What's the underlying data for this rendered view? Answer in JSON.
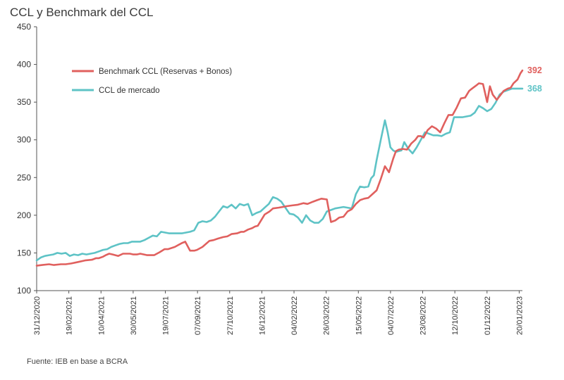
{
  "chart_data": {
    "type": "line",
    "title": "CCL y Benchmark del CCL",
    "source": "Fuente: IEB en base a BCRA",
    "ylim": [
      100,
      450
    ],
    "yticks": [
      100,
      150,
      200,
      250,
      300,
      350,
      400,
      450
    ],
    "x_tick_labels": [
      "31/12/2020",
      "19/02/2021",
      "10/04/2021",
      "30/05/2021",
      "19/07/2021",
      "07/09/2021",
      "27/10/2021",
      "16/12/2021",
      "04/02/2022",
      "26/03/2022",
      "15/05/2022",
      "04/07/2022",
      "23/08/2022",
      "12/10/2022",
      "01/12/2022",
      "20/01/2023"
    ],
    "legend_position": "top-left",
    "grid": false,
    "series": [
      {
        "name": "Benchmark CCL (Reservas + Bonos)",
        "color": "#e0605e",
        "end_label": "392",
        "x": [
          0,
          8,
          18,
          25,
          35,
          42,
          50,
          60,
          70,
          80,
          86,
          90,
          96,
          100,
          105,
          110,
          118,
          125,
          130,
          135,
          140,
          145,
          150,
          160,
          170,
          178,
          185,
          190,
          200,
          210,
          215,
          222,
          228,
          232,
          240,
          250,
          256,
          262,
          270,
          276,
          282,
          290,
          296,
          300,
          306,
          312,
          316,
          320,
          330,
          337,
          342,
          350,
          356,
          362,
          370,
          378,
          386,
          392,
          400,
          406,
          412,
          420,
          426,
          432,
          438,
          444,
          450,
          456,
          462,
          468,
          474,
          480,
          486,
          492,
          498,
          504,
          510,
          516,
          520,
          524,
          530,
          536,
          542,
          548,
          552,
          556,
          560,
          566,
          572,
          578,
          584,
          590,
          596,
          602,
          608,
          614,
          620,
          626,
          630,
          636,
          640,
          646,
          652,
          656,
          660,
          666,
          670,
          676,
          682,
          686,
          690,
          696,
          700,
          703
        ],
        "y": [
          133,
          134,
          135,
          134,
          135,
          135,
          136,
          138,
          140,
          141,
          143,
          143,
          145,
          147,
          149,
          148,
          146,
          149,
          149,
          149,
          148,
          148,
          149,
          147,
          147,
          151,
          155,
          155,
          158,
          163,
          165,
          153,
          153,
          154,
          158,
          166,
          167,
          169,
          171,
          172,
          175,
          176,
          178,
          178,
          181,
          183,
          185,
          186,
          201,
          205,
          209,
          210,
          211,
          212,
          213,
          214,
          216,
          215,
          218,
          220,
          222,
          221,
          191,
          193,
          197,
          198,
          205,
          208,
          215,
          220,
          222,
          223,
          228,
          233,
          248,
          265,
          257,
          275,
          285,
          287,
          288,
          287,
          295,
          300,
          305,
          305,
          303,
          313,
          318,
          315,
          310,
          322,
          333,
          333,
          343,
          355,
          356,
          365,
          368,
          372,
          375,
          374,
          350,
          371,
          360,
          353,
          358,
          365,
          368,
          369,
          375,
          380,
          388,
          392
        ]
      },
      {
        "name": "CCL de mercado",
        "color": "#5ec3c6",
        "end_label": "368",
        "x": [
          0,
          6,
          12,
          18,
          24,
          30,
          36,
          42,
          48,
          54,
          60,
          66,
          72,
          78,
          84,
          90,
          96,
          102,
          108,
          114,
          120,
          126,
          132,
          138,
          144,
          150,
          156,
          162,
          168,
          174,
          180,
          186,
          192,
          198,
          204,
          210,
          216,
          222,
          228,
          234,
          240,
          246,
          252,
          258,
          264,
          270,
          276,
          282,
          288,
          294,
          300,
          306,
          312,
          318,
          324,
          330,
          336,
          342,
          348,
          354,
          360,
          366,
          372,
          378,
          384,
          390,
          396,
          402,
          408,
          414,
          420,
          426,
          432,
          438,
          444,
          450,
          456,
          462,
          468,
          474,
          480,
          484,
          488,
          492,
          498,
          504,
          508,
          512,
          516,
          520,
          524,
          528,
          532,
          538,
          544,
          550,
          556,
          562,
          568,
          574,
          580,
          586,
          592,
          598,
          604,
          610,
          616,
          622,
          628,
          634,
          640,
          646,
          652,
          658,
          664,
          670,
          676,
          682,
          688,
          694,
          700,
          703
        ],
        "y": [
          140,
          144,
          146,
          147,
          148,
          150,
          149,
          150,
          146,
          148,
          147,
          149,
          148,
          149,
          150,
          152,
          154,
          155,
          158,
          160,
          162,
          163,
          163,
          165,
          165,
          165,
          167,
          170,
          173,
          172,
          178,
          177,
          176,
          176,
          176,
          176,
          177,
          178,
          180,
          190,
          192,
          191,
          193,
          198,
          205,
          212,
          210,
          214,
          209,
          215,
          213,
          215,
          200,
          203,
          205,
          210,
          215,
          224,
          222,
          218,
          210,
          202,
          201,
          197,
          190,
          200,
          193,
          190,
          190,
          195,
          205,
          207,
          209,
          210,
          211,
          210,
          209,
          228,
          238,
          237,
          238,
          249,
          253,
          273,
          300,
          326,
          310,
          290,
          286,
          284,
          285,
          286,
          297,
          288,
          282,
          290,
          300,
          310,
          308,
          306,
          306,
          305,
          308,
          310,
          330,
          330,
          330,
          331,
          332,
          336,
          345,
          342,
          338,
          341,
          349,
          360,
          364,
          366,
          368,
          368,
          368,
          368
        ]
      }
    ]
  }
}
